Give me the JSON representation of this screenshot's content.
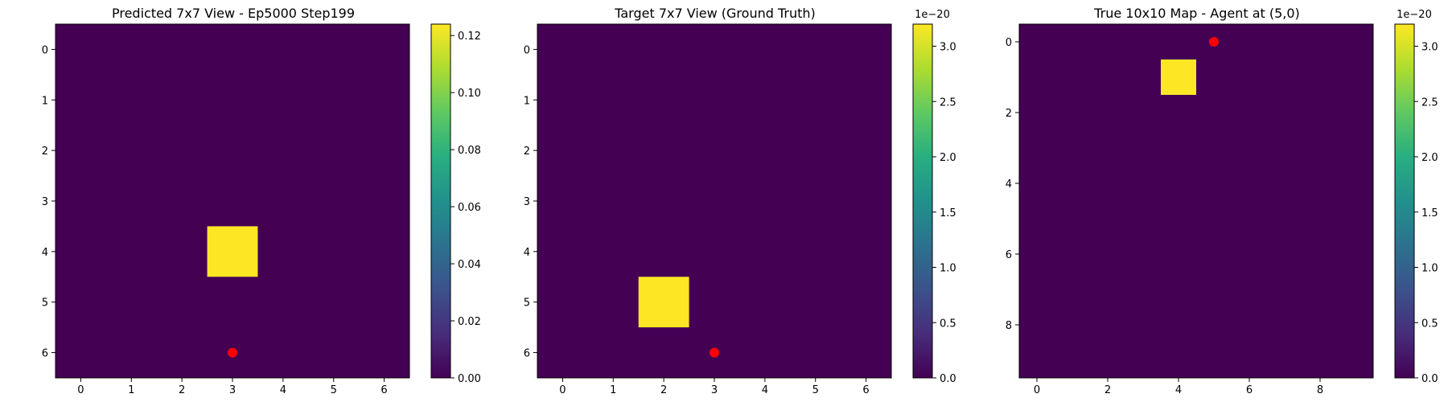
{
  "chart_data": [
    {
      "type": "heatmap",
      "title": "Predicted 7x7 View - Ep5000 Step199",
      "xlabel": "",
      "ylabel": "",
      "rows": 7,
      "cols": 7,
      "x_ticks": [
        0,
        1,
        2,
        3,
        4,
        5,
        6
      ],
      "y_ticks": [
        0,
        1,
        2,
        3,
        4,
        5,
        6
      ],
      "cells": [
        {
          "row": 4,
          "col": 3,
          "value": 0.124
        }
      ],
      "background_value": 0,
      "agent_marker": {
        "row": 6,
        "col": 3,
        "color": "#ff0000"
      },
      "colorbar": {
        "min": 0,
        "max": 0.124,
        "ticks": [
          0,
          0.02,
          0.04,
          0.06,
          0.08,
          0.1,
          0.12
        ],
        "tick_labels": [
          "0.00",
          "0.02",
          "0.04",
          "0.06",
          "0.08",
          "0.10",
          "0.12"
        ],
        "offset_label": ""
      }
    },
    {
      "type": "heatmap",
      "title": "Target 7x7 View (Ground Truth)",
      "xlabel": "",
      "ylabel": "",
      "rows": 7,
      "cols": 7,
      "x_ticks": [
        0,
        1,
        2,
        3,
        4,
        5,
        6
      ],
      "y_ticks": [
        0,
        1,
        2,
        3,
        4,
        5,
        6
      ],
      "cells": [
        {
          "row": 5,
          "col": 2,
          "value": 3.2e-20
        }
      ],
      "background_value": 0,
      "agent_marker": {
        "row": 6,
        "col": 3,
        "color": "#ff0000"
      },
      "colorbar": {
        "min": 0,
        "max": 3.2,
        "ticks": [
          0,
          0.5,
          1.0,
          1.5,
          2.0,
          2.5,
          3.0
        ],
        "tick_labels": [
          "0.0",
          "0.5",
          "1.0",
          "1.5",
          "2.0",
          "2.5",
          "3.0"
        ],
        "offset_label": "1e−20"
      }
    },
    {
      "type": "heatmap",
      "title": "True 10x10 Map - Agent at (5,0)",
      "xlabel": "",
      "ylabel": "",
      "rows": 10,
      "cols": 10,
      "x_ticks": [
        0,
        2,
        4,
        6,
        8
      ],
      "y_ticks": [
        0,
        2,
        4,
        6,
        8
      ],
      "cells": [
        {
          "row": 1,
          "col": 4,
          "value": 3.2e-20
        }
      ],
      "background_value": 0,
      "agent_marker": {
        "row": 0,
        "col": 5,
        "color": "#ff0000"
      },
      "colorbar": {
        "min": 0,
        "max": 3.2,
        "ticks": [
          0,
          0.5,
          1.0,
          1.5,
          2.0,
          2.5,
          3.0
        ],
        "tick_labels": [
          "0.0",
          "0.5",
          "1.0",
          "1.5",
          "2.0",
          "2.5",
          "3.0"
        ],
        "offset_label": "1e−20"
      }
    }
  ],
  "colors": {
    "low": "#440154",
    "high": "#fde725"
  }
}
